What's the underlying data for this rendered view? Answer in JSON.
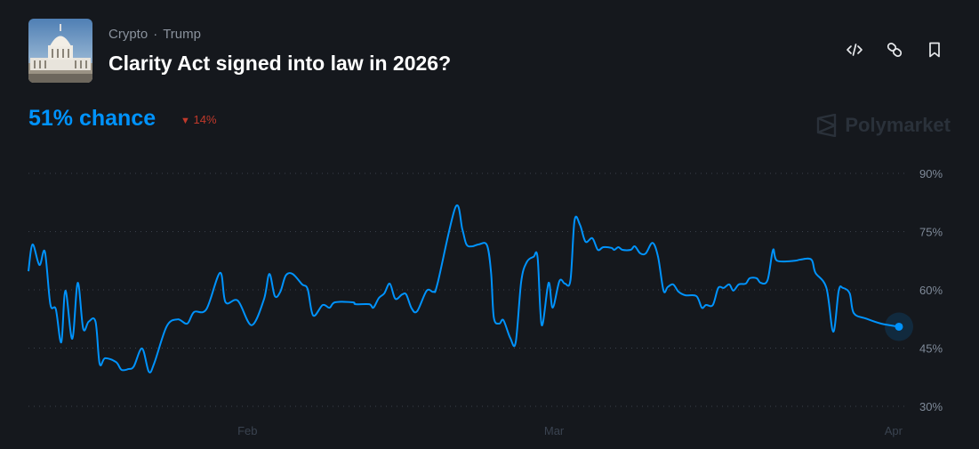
{
  "header": {
    "categories": [
      "Crypto",
      "Trump"
    ],
    "separator": "·",
    "title": "Clarity Act signed into law in 2026?",
    "image_icon": "capitol-building-image",
    "actions": [
      {
        "name": "embed-button",
        "icon": "code-icon"
      },
      {
        "name": "copy-link-button",
        "icon": "link-icon"
      },
      {
        "name": "bookmark-button",
        "icon": "bookmark-icon"
      }
    ]
  },
  "summary": {
    "chance": "51% chance",
    "delta": "14%",
    "delta_direction": "down",
    "delta_color": "#c0392b"
  },
  "brand": {
    "name": "Polymarket"
  },
  "colors": {
    "line": "#0093fd",
    "background": "#15181d"
  },
  "chart_data": {
    "type": "line",
    "title": "",
    "xlabel": "",
    "ylabel": "",
    "xlim": [
      "2026-01-12T00",
      "2026-04-01T14"
    ],
    "ylim": [
      30,
      90
    ],
    "yticks": [
      90,
      75,
      60,
      45,
      30
    ],
    "ytick_labels": [
      "90%",
      "75%",
      "60%",
      "45%",
      "30%"
    ],
    "xticks": [
      "2026-02-01T00",
      "2026-03-01T00",
      "2026-04-01T00"
    ],
    "xtick_labels": [
      "Feb",
      "Mar",
      "Apr"
    ],
    "grid": "horizontal-dotted",
    "y_axis_position": "right",
    "series": [
      {
        "points": [
          [
            "2026-01-12T00",
            64.8
          ],
          [
            "2026-01-12T09",
            71.7
          ],
          [
            "2026-01-13T00",
            66.4
          ],
          [
            "2026-01-13T12",
            69.8
          ],
          [
            "2026-01-14T00",
            56.3
          ],
          [
            "2026-01-14T12",
            55
          ],
          [
            "2026-01-15T00",
            46.5
          ],
          [
            "2026-01-15T09",
            59.8
          ],
          [
            "2026-01-16T00",
            47.4
          ],
          [
            "2026-01-16T12",
            61.8
          ],
          [
            "2026-01-17T00",
            50
          ],
          [
            "2026-01-17T12",
            51.8
          ],
          [
            "2026-01-18T03",
            51.8
          ],
          [
            "2026-01-18T12",
            41
          ],
          [
            "2026-01-19T00",
            42.4
          ],
          [
            "2026-01-20T00",
            41.4
          ],
          [
            "2026-01-20T12",
            39.4
          ],
          [
            "2026-01-21T03",
            39.6
          ],
          [
            "2026-01-21T15",
            40.3
          ],
          [
            "2026-01-22T09",
            44.9
          ],
          [
            "2026-01-23T00",
            38.9
          ],
          [
            "2026-01-23T12",
            41.2
          ],
          [
            "2026-01-24T15",
            50.6
          ],
          [
            "2026-01-25T15",
            52.4
          ],
          [
            "2026-01-26T12",
            51.3
          ],
          [
            "2026-01-27T03",
            54.3
          ],
          [
            "2026-01-28T06",
            55
          ],
          [
            "2026-01-29T12",
            64.4
          ],
          [
            "2026-01-30T00",
            56.8
          ],
          [
            "2026-01-31T03",
            57.2
          ],
          [
            "2026-02-01T09",
            50.9
          ],
          [
            "2026-02-02T12",
            57.5
          ],
          [
            "2026-02-03T00",
            64.1
          ],
          [
            "2026-02-03T12",
            58.4
          ],
          [
            "2026-02-04T00",
            59.5
          ],
          [
            "2026-02-04T12",
            63.7
          ],
          [
            "2026-02-05T03",
            64.1
          ],
          [
            "2026-02-06T00",
            61.4
          ],
          [
            "2026-02-06T12",
            60.2
          ],
          [
            "2026-02-07T00",
            53.4
          ],
          [
            "2026-02-07T21",
            56.1
          ],
          [
            "2026-02-08T12",
            55.4
          ],
          [
            "2026-02-09T00",
            56.8
          ],
          [
            "2026-02-10T15",
            56.8
          ],
          [
            "2026-02-10T21",
            56.3
          ],
          [
            "2026-02-12T03",
            56.3
          ],
          [
            "2026-02-12T12",
            55.4
          ],
          [
            "2026-02-13T00",
            57.9
          ],
          [
            "2026-02-13T12",
            59.1
          ],
          [
            "2026-02-14T00",
            61.6
          ],
          [
            "2026-02-14T12",
            57.7
          ],
          [
            "2026-02-15T03",
            58.8
          ],
          [
            "2026-02-15T12",
            58.8
          ],
          [
            "2026-02-16T00",
            55.2
          ],
          [
            "2026-02-16T12",
            54.5
          ],
          [
            "2026-02-17T09",
            59.8
          ],
          [
            "2026-02-18T00",
            59.5
          ],
          [
            "2026-02-18T09",
            61.8
          ],
          [
            "2026-02-20T00",
            81.3
          ],
          [
            "2026-02-20T15",
            75.6
          ],
          [
            "2026-02-21T00",
            71.7
          ],
          [
            "2026-02-21T12",
            71.2
          ],
          [
            "2026-02-22T03",
            71.7
          ],
          [
            "2026-02-22T21",
            71.5
          ],
          [
            "2026-02-23T06",
            64.4
          ],
          [
            "2026-02-23T12",
            52.9
          ],
          [
            "2026-02-24T00",
            51.3
          ],
          [
            "2026-02-24T09",
            52.2
          ],
          [
            "2026-02-25T00",
            47.6
          ],
          [
            "2026-02-25T12",
            46.5
          ],
          [
            "2026-02-26T00",
            62.1
          ],
          [
            "2026-02-26T12",
            67.1
          ],
          [
            "2026-02-27T03",
            68.5
          ],
          [
            "2026-02-27T12",
            68.3
          ],
          [
            "2026-02-27T21",
            50.9
          ],
          [
            "2026-02-28T12",
            61.8
          ],
          [
            "2026-02-28T21",
            55.4
          ],
          [
            "2026-03-01T12",
            62.3
          ],
          [
            "2026-03-02T00",
            61.6
          ],
          [
            "2026-03-02T12",
            62.5
          ],
          [
            "2026-03-02T21",
            77.9
          ],
          [
            "2026-03-03T09",
            76.7
          ],
          [
            "2026-03-03T21",
            72.4
          ],
          [
            "2026-03-04T12",
            73.3
          ],
          [
            "2026-03-05T00",
            70.3
          ],
          [
            "2026-03-05T12",
            71
          ],
          [
            "2026-03-06T06",
            70.8
          ],
          [
            "2026-03-06T12",
            70.3
          ],
          [
            "2026-03-06T21",
            71
          ],
          [
            "2026-03-07T06",
            70.3
          ],
          [
            "2026-03-08T00",
            70.3
          ],
          [
            "2026-03-08T09",
            71.2
          ],
          [
            "2026-03-08T21",
            69.4
          ],
          [
            "2026-03-09T09",
            69.4
          ],
          [
            "2026-03-10T00",
            72.1
          ],
          [
            "2026-03-10T12",
            68.5
          ],
          [
            "2026-03-11T00",
            59.8
          ],
          [
            "2026-03-11T09",
            60.7
          ],
          [
            "2026-03-11T21",
            61.4
          ],
          [
            "2026-03-12T09",
            59.5
          ],
          [
            "2026-03-13T00",
            58.6
          ],
          [
            "2026-03-14T00",
            58.4
          ],
          [
            "2026-03-14T12",
            55.4
          ],
          [
            "2026-03-14T21",
            56.1
          ],
          [
            "2026-03-15T12",
            56.1
          ],
          [
            "2026-03-16T00",
            60.5
          ],
          [
            "2026-03-16T12",
            60.5
          ],
          [
            "2026-03-17T00",
            61.4
          ],
          [
            "2026-03-17T09",
            59.8
          ],
          [
            "2026-03-17T21",
            61.4
          ],
          [
            "2026-03-18T12",
            61.6
          ],
          [
            "2026-03-18T21",
            63
          ],
          [
            "2026-03-19T12",
            63
          ],
          [
            "2026-03-19T21",
            61.8
          ],
          [
            "2026-03-20T12",
            62.5
          ],
          [
            "2026-03-21T00",
            70.3
          ],
          [
            "2026-03-21T09",
            67.5
          ],
          [
            "2026-03-23T00",
            67.5
          ],
          [
            "2026-03-23T12",
            67.8
          ],
          [
            "2026-03-24T12",
            67.8
          ],
          [
            "2026-03-24T21",
            64.4
          ],
          [
            "2026-03-25T21",
            60.5
          ],
          [
            "2026-03-26T12",
            49.2
          ],
          [
            "2026-03-27T00",
            59.8
          ],
          [
            "2026-03-27T09",
            60.5
          ],
          [
            "2026-03-28T00",
            59.1
          ],
          [
            "2026-03-28T09",
            54
          ],
          [
            "2026-03-29T12",
            52.6
          ],
          [
            "2026-03-30T21",
            51.3
          ],
          [
            "2026-04-01T12",
            50.5
          ]
        ]
      }
    ]
  }
}
